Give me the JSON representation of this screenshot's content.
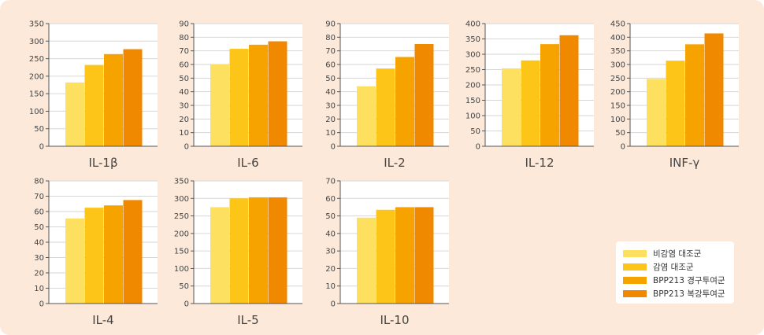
{
  "colors": {
    "background": "#fde9d9",
    "plot_background": "#ffffff",
    "axis": "#555555",
    "grid": "#d6d6d6",
    "text": "#444444",
    "series": [
      "#fde060",
      "#fcc518",
      "#f6a300",
      "#f08800"
    ]
  },
  "legend": [
    {
      "label": "비감염 대조군",
      "color": "#fde060"
    },
    {
      "label": "감염 대조군",
      "color": "#fcc518"
    },
    {
      "label": "BPP213 경구투여군",
      "color": "#f6a300"
    },
    {
      "label": "BPP213 복강투여군",
      "color": "#f08800"
    }
  ],
  "chart_data": [
    {
      "type": "bar",
      "xlabel": "IL-1β",
      "ylim": [
        0,
        350
      ],
      "yticks": [
        0,
        50,
        100,
        150,
        200,
        250,
        300,
        350
      ],
      "values": [
        182,
        232,
        263,
        277
      ]
    },
    {
      "type": "bar",
      "xlabel": "IL-6",
      "ylim": [
        0,
        90
      ],
      "yticks": [
        0,
        10,
        20,
        30,
        40,
        50,
        60,
        70,
        80,
        90
      ],
      "values": [
        60,
        71.5,
        74.5,
        77
      ]
    },
    {
      "type": "bar",
      "xlabel": "IL-2",
      "ylim": [
        0,
        90
      ],
      "yticks": [
        0,
        10,
        20,
        30,
        40,
        50,
        60,
        70,
        80,
        90
      ],
      "values": [
        44,
        57,
        65.5,
        75
      ]
    },
    {
      "type": "bar",
      "xlabel": "IL-12",
      "ylim": [
        0,
        400
      ],
      "yticks": [
        0,
        50,
        100,
        150,
        200,
        250,
        300,
        350,
        400
      ],
      "values": [
        254,
        280,
        333,
        362
      ]
    },
    {
      "type": "bar",
      "xlabel": "INF-γ",
      "ylim": [
        0,
        450
      ],
      "yticks": [
        0,
        50,
        100,
        150,
        200,
        250,
        300,
        350,
        400,
        450
      ],
      "values": [
        247,
        314,
        374,
        414
      ]
    },
    {
      "type": "bar",
      "xlabel": "IL-4",
      "ylim": [
        0,
        80
      ],
      "yticks": [
        0,
        10,
        20,
        30,
        40,
        50,
        60,
        70,
        80
      ],
      "values": [
        55.5,
        62.5,
        64,
        67.5
      ]
    },
    {
      "type": "bar",
      "xlabel": "IL-5",
      "ylim": [
        0,
        350
      ],
      "yticks": [
        0,
        50,
        100,
        150,
        200,
        250,
        300,
        350
      ],
      "values": [
        275,
        300,
        303,
        303
      ]
    },
    {
      "type": "bar",
      "xlabel": "IL-10",
      "ylim": [
        0,
        70
      ],
      "yticks": [
        0,
        10,
        20,
        30,
        40,
        50,
        60,
        70
      ],
      "values": [
        49,
        53.5,
        55,
        55
      ]
    }
  ]
}
